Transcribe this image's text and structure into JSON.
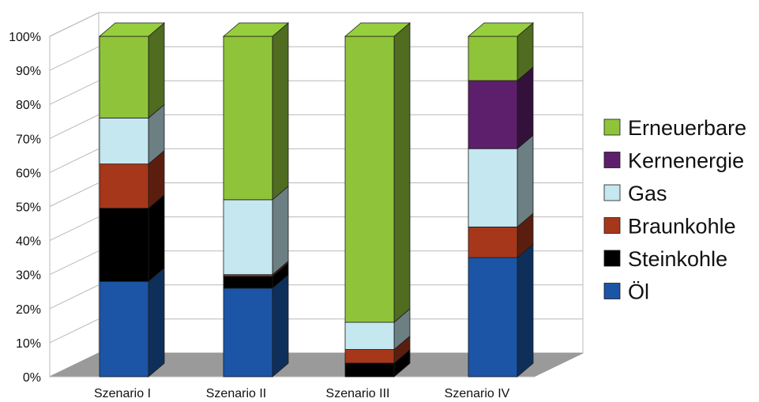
{
  "chart_data": {
    "type": "bar",
    "stacked": true,
    "percent": true,
    "three_d": true,
    "title": "",
    "xlabel": "",
    "ylabel": "",
    "ylim": [
      0,
      100
    ],
    "y_ticks": [
      "0%",
      "10%",
      "20%",
      "30%",
      "40%",
      "50%",
      "60%",
      "70%",
      "80%",
      "90%",
      "100%"
    ],
    "grid": true,
    "legend_position": "right",
    "categories": [
      "Szenario I",
      "Szenario II",
      "Szenario III",
      "Szenario IV"
    ],
    "series": [
      {
        "name": "Öl",
        "color": "#1c55a6",
        "values": [
          28,
          26,
          0,
          35
        ]
      },
      {
        "name": "Steinkohle",
        "color": "#000000",
        "values": [
          21.5,
          3.5,
          4,
          0
        ]
      },
      {
        "name": "Braunkohle",
        "color": "#a6371a",
        "values": [
          13,
          0.5,
          4,
          9
        ]
      },
      {
        "name": "Gas",
        "color": "#c5e7ef",
        "values": [
          13.5,
          22,
          8,
          23
        ]
      },
      {
        "name": "Kernenergie",
        "color": "#5d1f6b",
        "values": [
          0,
          0,
          0,
          20
        ]
      },
      {
        "name": "Erneuerbare",
        "color": "#8fc43a",
        "values": [
          24,
          48,
          84,
          13
        ]
      }
    ]
  }
}
